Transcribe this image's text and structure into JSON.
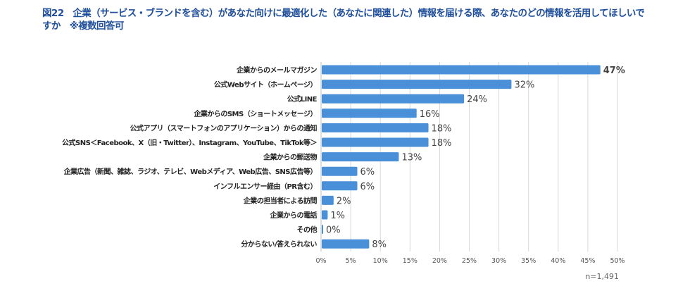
{
  "title": "図22　企業（サービス・ブランドを含む）があなた向けに最適化した（あなたに関連した）情報を届ける際、あなたのどの情報を活用してほしいですか　※複数回答可",
  "sample_note": "n=1,491",
  "colors": {
    "bar": "#4a90d9",
    "title": "#1f4e9a",
    "grid": "#d9d9d9"
  },
  "chart_data": {
    "type": "bar",
    "orientation": "horizontal",
    "categories": [
      "企業からのメールマガジン",
      "公式Webサイト（ホームページ）",
      "公式LINE",
      "企業からのSMS（ショートメッセージ）",
      "公式アプリ（スマートフォンのアプリケーション）からの通知",
      "公式SNS＜Facebook、X（旧・Twitter）、Instagram、YouTube、TikTok等＞",
      "企業からの郵送物",
      "企業広告（新聞、雑誌、ラジオ、テレビ、Webメディア、Web広告、SNS広告等）",
      "インフルエンサー経由（PR含む）",
      "企業の担当者による訪問",
      "企業からの電話",
      "その他",
      "分からない/答えられない"
    ],
    "values": [
      47,
      32,
      24,
      16,
      18,
      18,
      13,
      6,
      6,
      2,
      1,
      0,
      8
    ],
    "data_labels": [
      "47%",
      "32%",
      "24%",
      "16%",
      "18%",
      "18%",
      "13%",
      "6%",
      "6%",
      "2%",
      "1%",
      "0%",
      "8%"
    ],
    "xlim": [
      0,
      50
    ],
    "x_ticks": [
      "0%",
      "5%",
      "10%",
      "15%",
      "20%",
      "25%",
      "30%",
      "35%",
      "40%",
      "45%",
      "50%"
    ],
    "grid": true,
    "legend": "none"
  }
}
